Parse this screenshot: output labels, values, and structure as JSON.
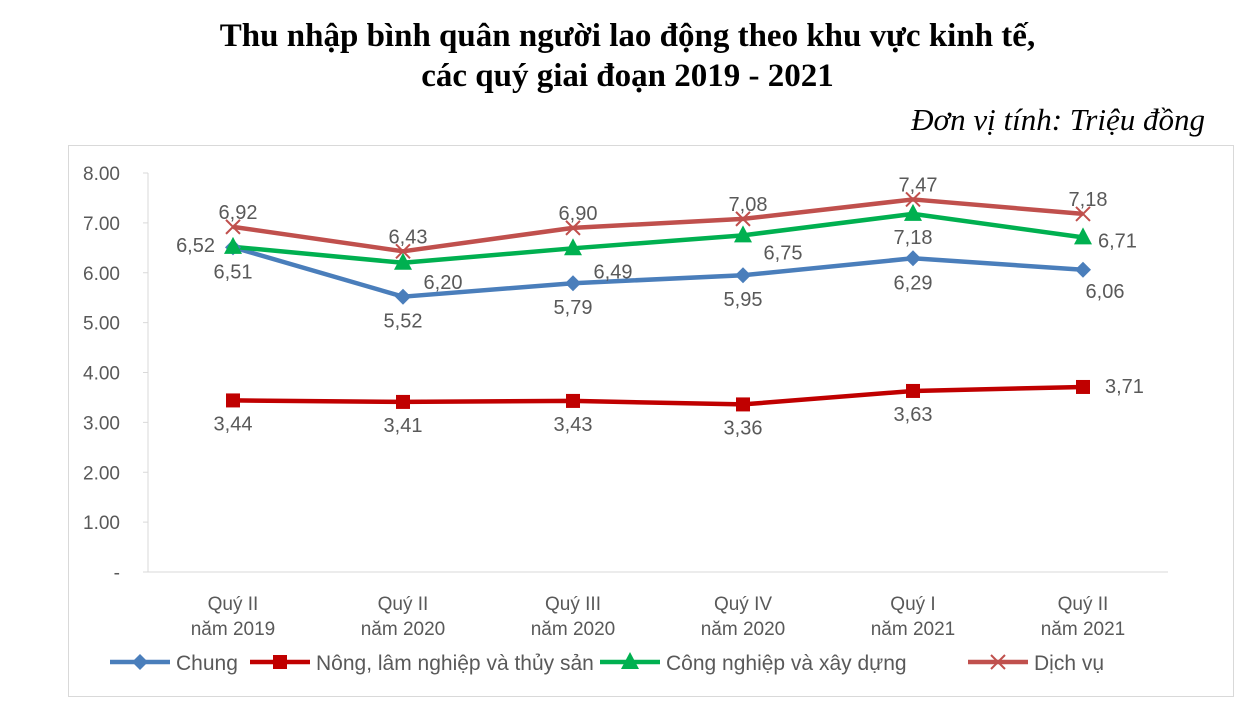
{
  "chart_data": {
    "type": "line",
    "title_line1": "Thu nhập bình quân người lao động theo khu vực kinh tế,",
    "title_line2": "các quý giai đoạn 2019 - 2021",
    "unit": "Đơn vị tính: Triệu đồng",
    "categories": [
      [
        "Quý II",
        "năm 2019"
      ],
      [
        "Quý II",
        "năm 2020"
      ],
      [
        "Quý III",
        "năm 2020"
      ],
      [
        "Quý IV",
        "năm 2020"
      ],
      [
        "Quý I",
        "năm 2021"
      ],
      [
        "Quý II",
        "năm 2021"
      ]
    ],
    "ylim": [
      0,
      8
    ],
    "yticks": [
      "-",
      "1.00",
      "2.00",
      "3.00",
      "4.00",
      "5.00",
      "6.00",
      "7.00",
      "8.00"
    ],
    "grid": false,
    "legend": "bottom",
    "series": [
      {
        "name": "Chung",
        "color": "#4a7ebb",
        "marker": "diamond",
        "values": [
          6.51,
          5.52,
          5.79,
          5.95,
          6.29,
          6.06
        ],
        "labels": [
          "6,51",
          "5,52",
          "5,79",
          "5,95",
          "6,29",
          "6,06"
        ]
      },
      {
        "name": "Nông, lâm nghiệp và thủy sản",
        "color": "#c00000",
        "marker": "square",
        "values": [
          3.44,
          3.41,
          3.43,
          3.36,
          3.63,
          3.71
        ],
        "labels": [
          "3,44",
          "3,41",
          "3,43",
          "3,36",
          "3,63",
          "3,71"
        ]
      },
      {
        "name": "Công nghiệp và xây dựng",
        "color": "#00b050",
        "marker": "triangle",
        "values": [
          6.52,
          6.2,
          6.49,
          6.75,
          7.18,
          6.71
        ],
        "labels": [
          "6,52",
          "6,20",
          "6,49",
          "6,75",
          "7,18",
          "6,71"
        ]
      },
      {
        "name": "Dịch vụ",
        "color": "#c0504d",
        "marker": "x",
        "values": [
          6.92,
          6.43,
          6.9,
          7.08,
          7.47,
          7.18
        ],
        "labels": [
          "6,92",
          "6,43",
          "6,90",
          "7,08",
          "7,47",
          "7,18"
        ]
      }
    ]
  }
}
